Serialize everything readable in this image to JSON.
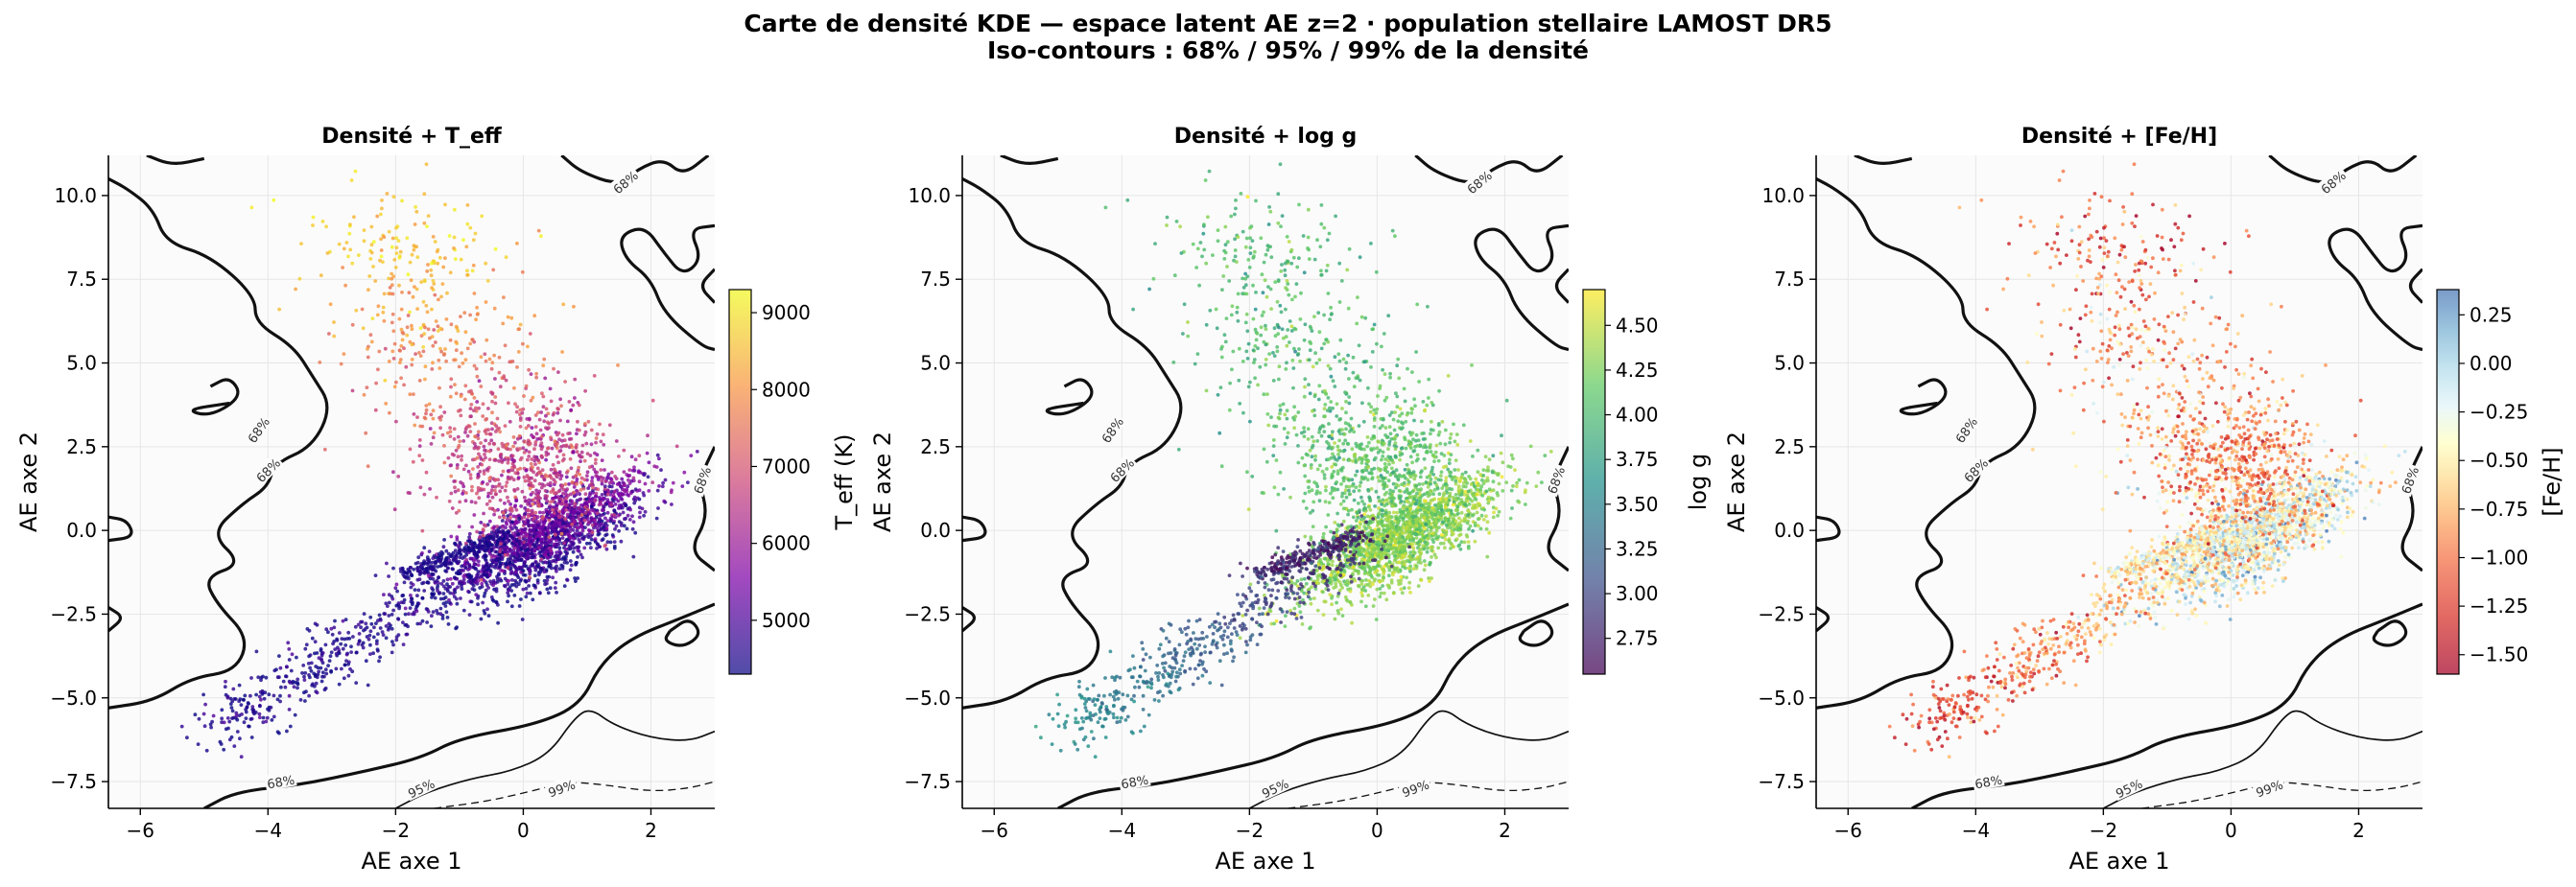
{
  "figure": {
    "title_line1": "Carte de densité KDE — espace latent AE z=2 · population stellaire LAMOST DR5",
    "title_line2": "Iso-contours : 68% / 95% / 99% de la densité"
  },
  "chart_data": [
    {
      "type": "scatter",
      "title": "Densité + T_eff",
      "xlabel": "AE axe 1",
      "ylabel": "AE axe 2",
      "xlim": [
        -6.5,
        3.0
      ],
      "ylim": [
        -8.3,
        11.2
      ],
      "xticks": [
        "−6",
        "−4",
        "−2",
        "0",
        "2"
      ],
      "yticks": [
        "−7.5",
        "−5.0",
        "−2.5",
        "0.0",
        "2.5",
        "5.0",
        "7.5",
        "10.0"
      ],
      "colorbar": {
        "label": "T_eff (K)",
        "range": [
          4300,
          9300
        ],
        "ticks": [
          "5000",
          "6000",
          "7000",
          "8000",
          "9000"
        ],
        "colormap": "plasma"
      },
      "contour_labels": [
        "68%",
        "95%",
        "99%"
      ],
      "grid": true
    },
    {
      "type": "scatter",
      "title": "Densité + log g",
      "xlabel": "AE axe 1",
      "ylabel": "AE axe 2",
      "xlim": [
        -6.5,
        3.0
      ],
      "ylim": [
        -8.3,
        11.2
      ],
      "xticks": [
        "−6",
        "−4",
        "−2",
        "0",
        "2"
      ],
      "yticks": [
        "−7.5",
        "−5.0",
        "−2.5",
        "0.0",
        "2.5",
        "5.0",
        "7.5",
        "10.0"
      ],
      "colorbar": {
        "label": "log g",
        "range": [
          2.55,
          4.7
        ],
        "ticks": [
          "2.75",
          "3.00",
          "3.25",
          "3.50",
          "3.75",
          "4.00",
          "4.25",
          "4.50"
        ],
        "colormap": "viridis"
      },
      "contour_labels": [
        "68%",
        "95%",
        "99%"
      ],
      "grid": true
    },
    {
      "type": "scatter",
      "title": "Densité + [Fe/H]",
      "xlabel": "AE axe 1",
      "ylabel": "AE axe 2",
      "xlim": [
        -6.5,
        3.0
      ],
      "ylim": [
        -8.3,
        11.2
      ],
      "xticks": [
        "−6",
        "−4",
        "−2",
        "0",
        "2"
      ],
      "yticks": [
        "−7.5",
        "−5.0",
        "−2.5",
        "0.0",
        "2.5",
        "5.0",
        "7.5",
        "10.0"
      ],
      "colorbar": {
        "label": "[Fe/H]",
        "range": [
          -1.6,
          0.38
        ],
        "ticks": [
          "−1.50",
          "−1.25",
          "−1.00",
          "−0.75",
          "−0.50",
          "−0.25",
          "0.00",
          "0.25"
        ],
        "colormap": "RdYlBu"
      },
      "contour_labels": [
        "68%",
        "95%",
        "99%"
      ],
      "grid": true
    }
  ]
}
